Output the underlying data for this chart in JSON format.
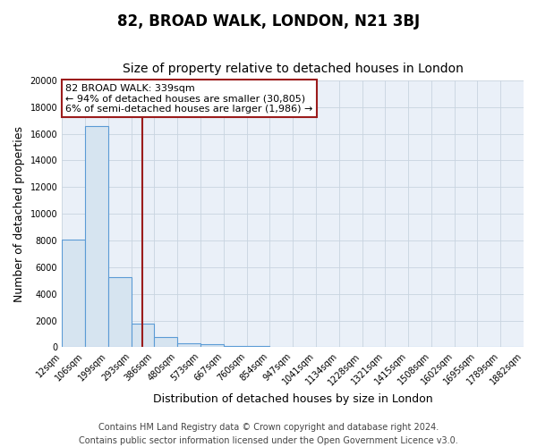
{
  "title": "82, BROAD WALK, LONDON, N21 3BJ",
  "subtitle": "Size of property relative to detached houses in London",
  "xlabel": "Distribution of detached houses by size in London",
  "ylabel": "Number of detached properties",
  "bar_edges": [
    12,
    106,
    199,
    293,
    386,
    480,
    573,
    667,
    760,
    854,
    947,
    1041,
    1134,
    1228,
    1321,
    1415,
    1508,
    1602,
    1695,
    1789,
    1882
  ],
  "bar_heights": [
    8050,
    16600,
    5250,
    1800,
    800,
    300,
    230,
    100,
    80,
    0,
    0,
    0,
    0,
    0,
    0,
    0,
    0,
    0,
    0,
    0
  ],
  "bar_color": "#d6e4f0",
  "bar_edge_color": "#5b9bd5",
  "vline_x": 339,
  "vline_color": "#9b1c1c",
  "annotation_text": "82 BROAD WALK: 339sqm\n← 94% of detached houses are smaller (30,805)\n6% of semi-detached houses are larger (1,986) →",
  "annotation_box_color": "#ffffff",
  "annotation_box_edge_color": "#9b1c1c",
  "ylim": [
    0,
    20000
  ],
  "yticks": [
    0,
    2000,
    4000,
    6000,
    8000,
    10000,
    12000,
    14000,
    16000,
    18000,
    20000
  ],
  "tick_labels": [
    "12sqm",
    "106sqm",
    "199sqm",
    "293sqm",
    "386sqm",
    "480sqm",
    "573sqm",
    "667sqm",
    "760sqm",
    "854sqm",
    "947sqm",
    "1041sqm",
    "1134sqm",
    "1228sqm",
    "1321sqm",
    "1415sqm",
    "1508sqm",
    "1602sqm",
    "1695sqm",
    "1789sqm",
    "1882sqm"
  ],
  "footer_line1": "Contains HM Land Registry data © Crown copyright and database right 2024.",
  "footer_line2": "Contains public sector information licensed under the Open Government Licence v3.0.",
  "background_color": "#ffffff",
  "plot_bg_color": "#eaf0f8",
  "grid_color": "#c8d4e0",
  "title_fontsize": 12,
  "subtitle_fontsize": 10,
  "axis_label_fontsize": 9,
  "tick_fontsize": 7,
  "footer_fontsize": 7,
  "annotation_fontsize": 8
}
